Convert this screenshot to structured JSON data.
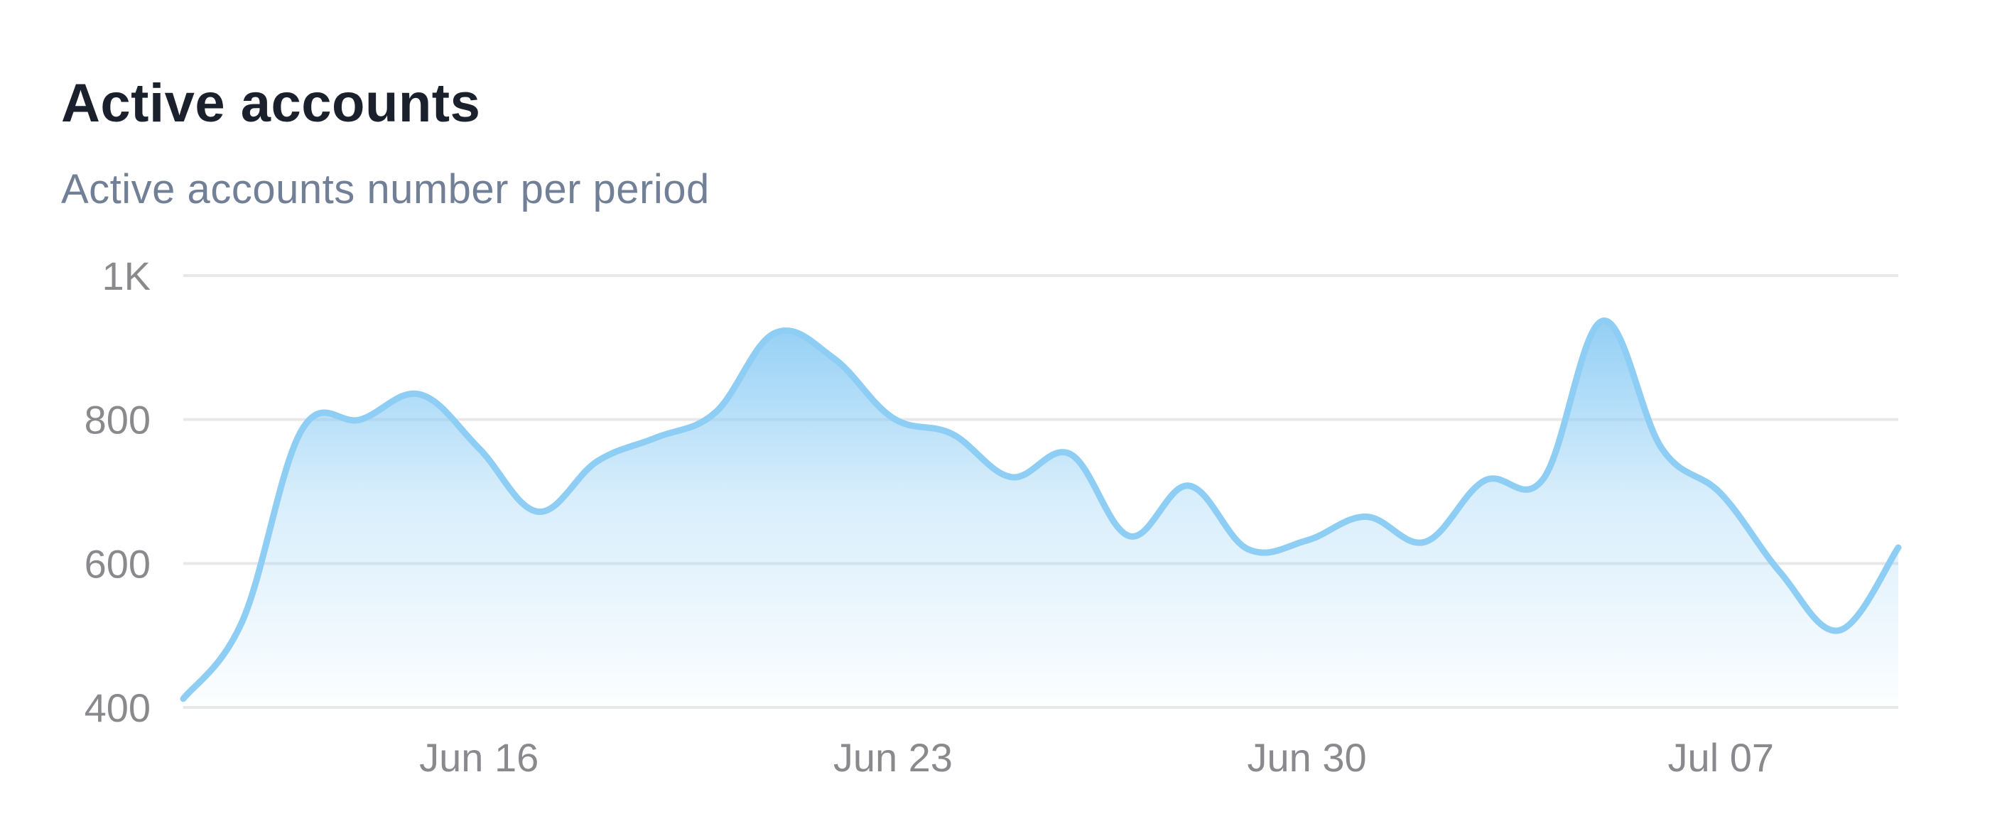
{
  "title": "Active accounts",
  "subtitle": "Active accounts number per period",
  "colors": {
    "line": "#8ecdf4",
    "area_top": "#8ecdf4",
    "grid": "#e8e8ea",
    "tick": "#8a8a8e",
    "title": "#1a202c",
    "subtitle": "#718096"
  },
  "chart_data": {
    "type": "area",
    "title": "Active accounts",
    "subtitle": "Active accounts number per period",
    "xlabel": "",
    "ylabel": "",
    "ylim": [
      400,
      1000
    ],
    "yticks": [
      {
        "value": 400,
        "label": "400"
      },
      {
        "value": 600,
        "label": "600"
      },
      {
        "value": 800,
        "label": "800"
      },
      {
        "value": 1000,
        "label": "1K"
      }
    ],
    "xticks": [
      {
        "date": "2024-06-16",
        "label": "Jun 16"
      },
      {
        "date": "2024-06-23",
        "label": "Jun 23"
      },
      {
        "date": "2024-06-30",
        "label": "Jun 30"
      },
      {
        "date": "2024-07-07",
        "label": "Jul 07"
      }
    ],
    "grid": true,
    "legend": "none",
    "series": [
      {
        "points": [
          {
            "x": "2024-06-11",
            "y": 412
          },
          {
            "x": "2024-06-12",
            "y": 520
          },
          {
            "x": "2024-06-13",
            "y": 785
          },
          {
            "x": "2024-06-14",
            "y": 800
          },
          {
            "x": "2024-06-15",
            "y": 835
          },
          {
            "x": "2024-06-16",
            "y": 760
          },
          {
            "x": "2024-06-17",
            "y": 672
          },
          {
            "x": "2024-06-18",
            "y": 742
          },
          {
            "x": "2024-06-19",
            "y": 775
          },
          {
            "x": "2024-06-20",
            "y": 810
          },
          {
            "x": "2024-06-21",
            "y": 920
          },
          {
            "x": "2024-06-22",
            "y": 885
          },
          {
            "x": "2024-06-23",
            "y": 802
          },
          {
            "x": "2024-06-24",
            "y": 780
          },
          {
            "x": "2024-06-25",
            "y": 720
          },
          {
            "x": "2024-06-26",
            "y": 752
          },
          {
            "x": "2024-06-27",
            "y": 638
          },
          {
            "x": "2024-06-28",
            "y": 708
          },
          {
            "x": "2024-06-29",
            "y": 620
          },
          {
            "x": "2024-06-30",
            "y": 632
          },
          {
            "x": "2024-07-01",
            "y": 665
          },
          {
            "x": "2024-07-02",
            "y": 630
          },
          {
            "x": "2024-07-03",
            "y": 715
          },
          {
            "x": "2024-07-04",
            "y": 718
          },
          {
            "x": "2024-07-05",
            "y": 937
          },
          {
            "x": "2024-07-06",
            "y": 760
          },
          {
            "x": "2024-07-07",
            "y": 697
          },
          {
            "x": "2024-07-08",
            "y": 588
          },
          {
            "x": "2024-07-09",
            "y": 507
          },
          {
            "x": "2024-07-10",
            "y": 622
          }
        ]
      }
    ]
  }
}
